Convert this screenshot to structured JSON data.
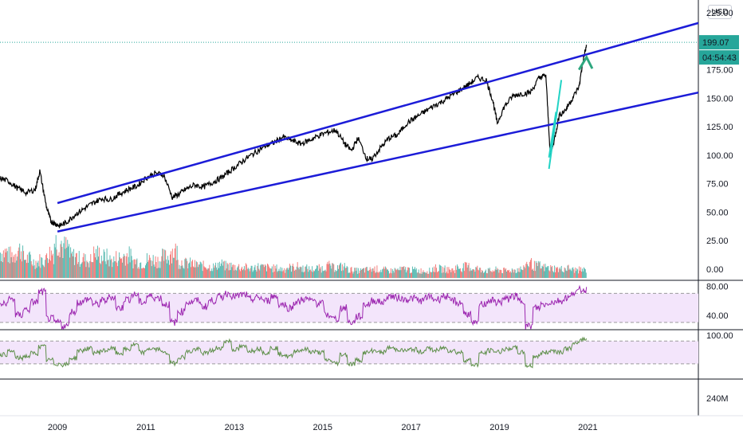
{
  "app": {
    "currency": "USD",
    "last_price": "199.07",
    "countdown": "04:54:43"
  },
  "colors": {
    "up": "#26a69a",
    "down": "#ef5350",
    "price_line": "#000000",
    "channel": "#1c1cd8",
    "rsi": "#9c27b0",
    "rsi_band": "#f3e5fb",
    "osc2": "#5e8f4a",
    "arrow": "#2ea77f",
    "cyan": "#22d3c5",
    "last_price_bg": "#26a69a"
  },
  "chart_data": [
    {
      "type": "line",
      "title": "",
      "x_ticks": [
        "2009",
        "2011",
        "2013",
        "2015",
        "2017",
        "2019",
        "2021"
      ],
      "x_tick_values": [
        2009,
        2011,
        2013,
        2015,
        2017,
        2019,
        2021
      ],
      "y_ticks": [
        "0.00",
        "25.00",
        "50.00",
        "75.00",
        "100.00",
        "125.00",
        "150.00",
        "175.00",
        "225.00"
      ],
      "y_tick_values": [
        0,
        25,
        50,
        75,
        100,
        125,
        150,
        175,
        225
      ],
      "ylim": [
        -5,
        228
      ],
      "xlim": [
        2007.7,
        2023.5
      ],
      "series": [
        {
          "x": [
            2007.7,
            2007.9,
            2008.1,
            2008.3,
            2008.5,
            2008.6,
            2008.75,
            2008.85,
            2008.95,
            2009.05,
            2009.2,
            2009.4,
            2009.6,
            2009.8,
            2010.0,
            2010.2,
            2010.4,
            2010.6,
            2010.8,
            2011.0,
            2011.2,
            2011.4,
            2011.6,
            2011.75,
            2011.9,
            2012.1,
            2012.3,
            2012.5,
            2012.7,
            2012.9,
            2013.1,
            2013.3,
            2013.5,
            2013.7,
            2013.9,
            2014.1,
            2014.3,
            2014.5,
            2014.7,
            2014.9,
            2015.1,
            2015.3,
            2015.5,
            2015.65,
            2015.8,
            2016.0,
            2016.1,
            2016.3,
            2016.5,
            2016.7,
            2016.9,
            2017.1,
            2017.3,
            2017.5,
            2017.7,
            2017.9,
            2018.1,
            2018.3,
            2018.5,
            2018.7,
            2018.85,
            2018.95,
            2019.1,
            2019.3,
            2019.5,
            2019.7,
            2019.9,
            2020.05,
            2020.15,
            2020.25,
            2020.35,
            2020.5,
            2020.65,
            2020.8,
            2020.9,
            2020.97
          ],
          "y": [
            80,
            77,
            71,
            67,
            70,
            86,
            55,
            42,
            40,
            38,
            41,
            48,
            53,
            58,
            62,
            61,
            66,
            70,
            73,
            80,
            84,
            83,
            63,
            66,
            70,
            74,
            72,
            76,
            80,
            86,
            92,
            98,
            103,
            108,
            111,
            116,
            113,
            110,
            113,
            117,
            120,
            122,
            110,
            104,
            115,
            97,
            96,
            106,
            115,
            118,
            128,
            133,
            138,
            143,
            147,
            152,
            157,
            162,
            168,
            166,
            148,
            128,
            142,
            152,
            154,
            155,
            168,
            170,
            100,
            115,
            135,
            140,
            150,
            160,
            185,
            196
          ]
        }
      ]
    },
    {
      "type": "bar",
      "title": "",
      "series": [
        {
          "name": "",
          "values": [
            32,
            28,
            35,
            24,
            20,
            22,
            31,
            45,
            38,
            27,
            24,
            22,
            30,
            26,
            22,
            25,
            28,
            21,
            19,
            23,
            22,
            26,
            33,
            20,
            18,
            16,
            15,
            14,
            17,
            15,
            14,
            13,
            12,
            14,
            13,
            12,
            11,
            13,
            14,
            12,
            11,
            12,
            15,
            13,
            14,
            10,
            9,
            10,
            11,
            10,
            9,
            10,
            11,
            10,
            9,
            9,
            12,
            11,
            10,
            13,
            14,
            12,
            10,
            9,
            10,
            9,
            10,
            11,
            18,
            15,
            13,
            12,
            11,
            12,
            10,
            10
          ]
        }
      ]
    },
    {
      "type": "line",
      "title": "",
      "y_ticks": [
        "80.00",
        "40.00"
      ],
      "y_tick_values": [
        80,
        40
      ],
      "ylim": [
        20,
        88
      ],
      "band": [
        30,
        70
      ],
      "series": [
        {
          "name": "",
          "values": [
            55,
            62,
            40,
            48,
            58,
            72,
            35,
            30,
            25,
            45,
            58,
            62,
            55,
            60,
            65,
            50,
            62,
            68,
            58,
            66,
            64,
            55,
            30,
            45,
            58,
            60,
            52,
            60,
            65,
            70,
            66,
            68,
            62,
            64,
            60,
            66,
            55,
            50,
            58,
            62,
            60,
            56,
            40,
            35,
            50,
            30,
            38,
            55,
            60,
            58,
            66,
            64,
            62,
            63,
            60,
            65,
            62,
            66,
            60,
            57,
            42,
            28,
            55,
            60,
            58,
            62,
            66,
            60,
            25,
            50,
            55,
            58,
            60,
            64,
            72,
            75
          ]
        }
      ]
    },
    {
      "type": "line",
      "title": "",
      "y_ticks": [
        "100.00"
      ],
      "y_tick_values": [
        100
      ],
      "ylim": [
        -20,
        110
      ],
      "band": [
        20,
        80
      ],
      "series": [
        {
          "name": "",
          "values": [
            45,
            52,
            35,
            40,
            48,
            65,
            30,
            20,
            18,
            35,
            55,
            60,
            50,
            55,
            60,
            48,
            58,
            70,
            50,
            60,
            58,
            48,
            22,
            38,
            52,
            58,
            48,
            55,
            62,
            80,
            58,
            65,
            55,
            60,
            50,
            62,
            45,
            40,
            55,
            58,
            52,
            50,
            30,
            22,
            45,
            20,
            30,
            50,
            55,
            50,
            62,
            58,
            55,
            58,
            52,
            60,
            55,
            62,
            55,
            50,
            30,
            18,
            48,
            55,
            52,
            58,
            62,
            50,
            15,
            40,
            50,
            55,
            52,
            60,
            72,
            85
          ]
        }
      ]
    },
    {
      "type": "bar",
      "title": "",
      "y_ticks": [
        "240M"
      ],
      "series": []
    }
  ]
}
